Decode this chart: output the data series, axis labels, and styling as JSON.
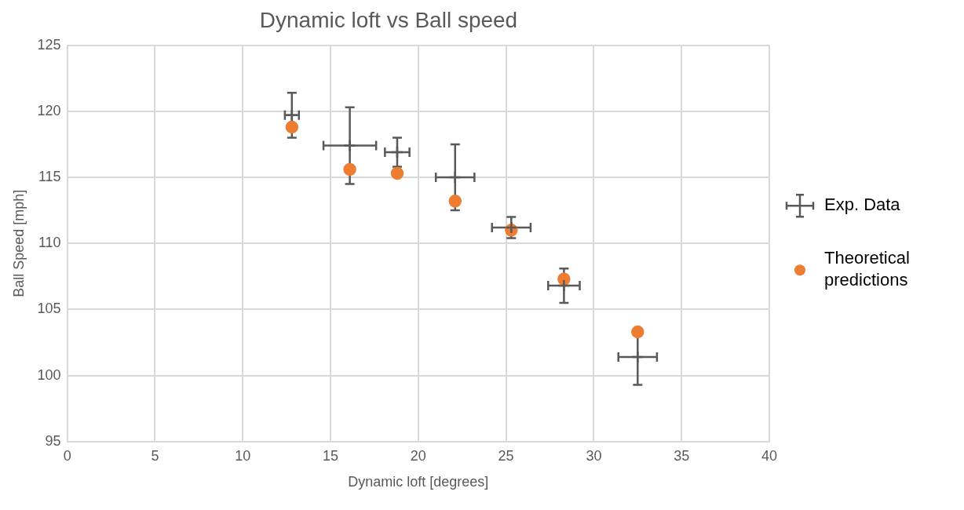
{
  "chart_data": {
    "type": "scatter",
    "title": "Dynamic loft vs Ball speed",
    "xlabel": "Dynamic loft [degrees]",
    "ylabel": "Ball Speed [mph]",
    "xlim": [
      0,
      40
    ],
    "xticks": [
      0,
      5,
      10,
      15,
      20,
      25,
      30,
      35,
      40
    ],
    "ylim": [
      95,
      125
    ],
    "yticks": [
      95,
      100,
      105,
      110,
      115,
      120,
      125
    ],
    "grid": true,
    "legend": "right",
    "series": [
      {
        "name": "Exp. Data",
        "color": "#595959",
        "marker": "cross",
        "x": [
          12.8,
          16.1,
          18.8,
          22.1,
          25.3,
          28.3,
          32.5
        ],
        "values": [
          119.7,
          117.4,
          116.9,
          115.0,
          111.2,
          106.8,
          101.4
        ],
        "errors": [
          1.7,
          2.9,
          1.1,
          2.5,
          0.8,
          1.3,
          2.1
        ],
        "xerrors": [
          0.4,
          1.5,
          0.7,
          1.1,
          1.1,
          0.9,
          1.1
        ]
      },
      {
        "name": "Theoretical predictions",
        "color": "#ed7d31",
        "marker": "circle",
        "x": [
          12.8,
          16.1,
          18.8,
          22.1,
          25.3,
          28.3,
          32.5
        ],
        "values": [
          118.8,
          115.6,
          115.3,
          113.2,
          111.0,
          107.3,
          103.3
        ]
      }
    ]
  }
}
